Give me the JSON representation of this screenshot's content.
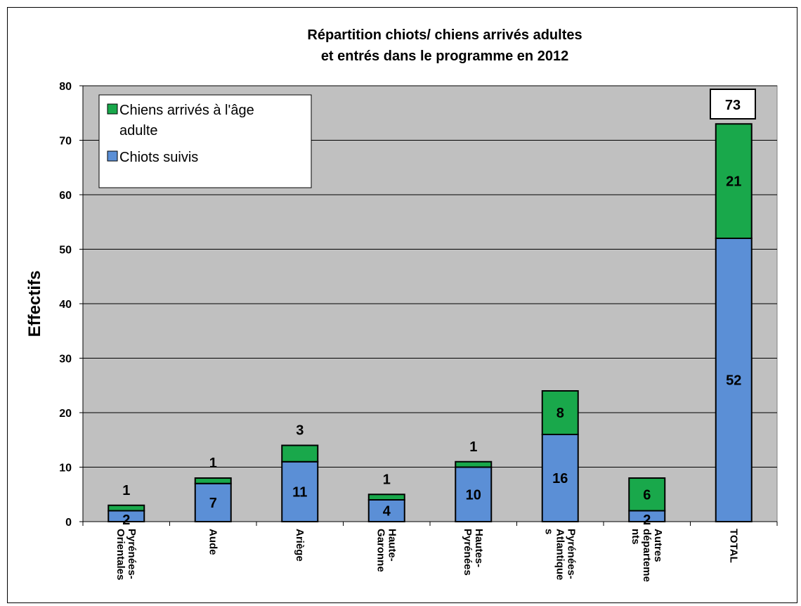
{
  "chart_data": {
    "type": "bar",
    "stacked": true,
    "title_line1": "Répartition chiots/ chiens arrivés adultes",
    "title_line2": "et entrés dans le programme en 2012",
    "ylabel": "Effectifs",
    "xlabel": "",
    "ylim": [
      0,
      80
    ],
    "yticks": [
      0,
      10,
      20,
      30,
      40,
      50,
      60,
      70,
      80
    ],
    "grid": true,
    "legend_position": "top-left",
    "categories": [
      [
        "Pyrénées-",
        "Orientales"
      ],
      [
        "Aude"
      ],
      [
        "Ariège"
      ],
      [
        "Haute-",
        "Garonne"
      ],
      [
        "Hautes-",
        "Pyrénées"
      ],
      [
        "Pyrénées-",
        "Atlantique",
        "s"
      ],
      [
        "Autres",
        "départeme",
        "nts"
      ],
      [
        "TOTAL"
      ]
    ],
    "series": [
      {
        "name": "Chiots suivis",
        "color": "#5b8fd6",
        "values": [
          2,
          7,
          11,
          4,
          10,
          16,
          2,
          52
        ]
      },
      {
        "name": "Chiens arrivés à l'âge adulte",
        "color": "#19a84b",
        "values": [
          1,
          1,
          3,
          1,
          1,
          8,
          6,
          21
        ]
      }
    ],
    "total_label": "73",
    "legend": {
      "line1": "Chiens arrivés à l'âge",
      "line2": "adulte",
      "line3": "Chiots suivis"
    }
  }
}
